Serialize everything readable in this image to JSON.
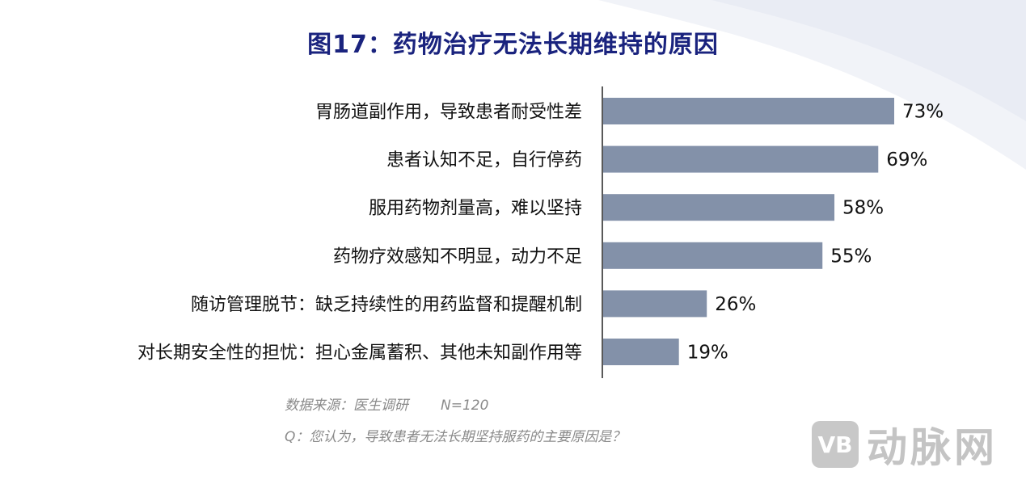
{
  "page": {
    "title": "图17：药物治疗无法长期维持的原因",
    "source_label": "数据来源：医生调研",
    "sample": "N=120",
    "question": "Q：您认为，导致患者无法长期坚持服药的主要原因是？",
    "watermark_logo": "VB",
    "watermark_text": "动脉网"
  },
  "colors": {
    "bar": "#8391a9",
    "title": "#1a237e",
    "axis": "#222222"
  },
  "chart_data": {
    "type": "bar",
    "orientation": "horizontal",
    "title": "图17：药物治疗无法长期维持的原因",
    "categories": [
      "胃肠道副作用，导致患者耐受性差",
      "患者认知不足，自行停药",
      "服用药物剂量高，难以坚持",
      "药物疗效感知不明显，动力不足",
      "随访管理脱节：缺乏持续性的用药监督和提醒机制",
      "对长期安全性的担忧：担心金属蓄积、其他未知副作用等"
    ],
    "values": [
      73,
      69,
      58,
      55,
      26,
      19
    ],
    "value_labels": [
      "73%",
      "69%",
      "58%",
      "55%",
      "26%",
      "19%"
    ],
    "unit": "%",
    "xlim": [
      0,
      100
    ],
    "grid": false,
    "legend": "none"
  }
}
